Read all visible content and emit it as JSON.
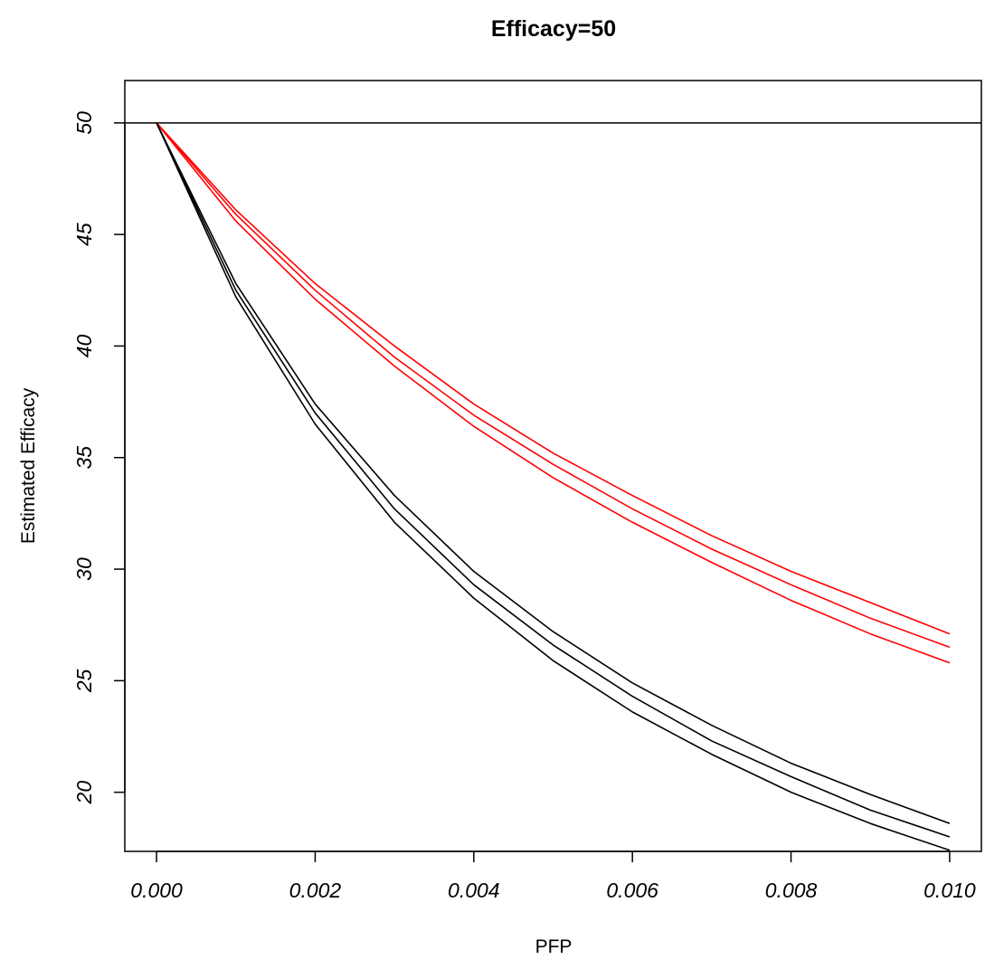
{
  "chart_data": {
    "type": "line",
    "title": "Efficacy=50",
    "xlabel": "PFP",
    "ylabel": "Estimated Efficacy",
    "xlim": [
      -0.0004,
      0.0104
    ],
    "ylim": [
      17.35,
      51.9
    ],
    "x_ticks": [
      "0.000",
      "0.002",
      "0.004",
      "0.006",
      "0.008",
      "0.010"
    ],
    "x_tick_values": [
      0,
      0.002,
      0.004,
      0.006,
      0.008,
      0.01
    ],
    "y_ticks": [
      "20",
      "25",
      "30",
      "35",
      "40",
      "45",
      "50"
    ],
    "y_tick_values": [
      20,
      25,
      30,
      35,
      40,
      45,
      50
    ],
    "grid": false,
    "legend": "none",
    "reference_line": {
      "y": 50,
      "color": "#000000"
    },
    "x": [
      0,
      0.001,
      0.002,
      0.003,
      0.004,
      0.005,
      0.006,
      0.007,
      0.008,
      0.009,
      0.01
    ],
    "series": [
      {
        "color": "#ff0000",
        "values": [
          50,
          46.1,
          42.8,
          40.0,
          37.4,
          35.2,
          33.3,
          31.5,
          29.9,
          28.5,
          27.1
        ]
      },
      {
        "color": "#ff0000",
        "values": [
          50,
          45.9,
          42.5,
          39.5,
          36.9,
          34.7,
          32.7,
          30.9,
          29.3,
          27.8,
          26.5
        ]
      },
      {
        "color": "#ff0000",
        "values": [
          50,
          45.6,
          42.1,
          39.1,
          36.4,
          34.1,
          32.1,
          30.3,
          28.6,
          27.1,
          25.8
        ]
      },
      {
        "color": "#000000",
        "values": [
          50,
          42.8,
          37.4,
          33.3,
          29.9,
          27.2,
          24.9,
          23.0,
          21.3,
          19.9,
          18.6
        ]
      },
      {
        "color": "#000000",
        "values": [
          50,
          42.5,
          37.0,
          32.7,
          29.3,
          26.6,
          24.3,
          22.3,
          20.7,
          19.2,
          18.0
        ]
      },
      {
        "color": "#000000",
        "values": [
          50,
          42.2,
          36.5,
          32.1,
          28.7,
          25.9,
          23.6,
          21.7,
          20.0,
          18.6,
          17.4
        ]
      }
    ]
  }
}
